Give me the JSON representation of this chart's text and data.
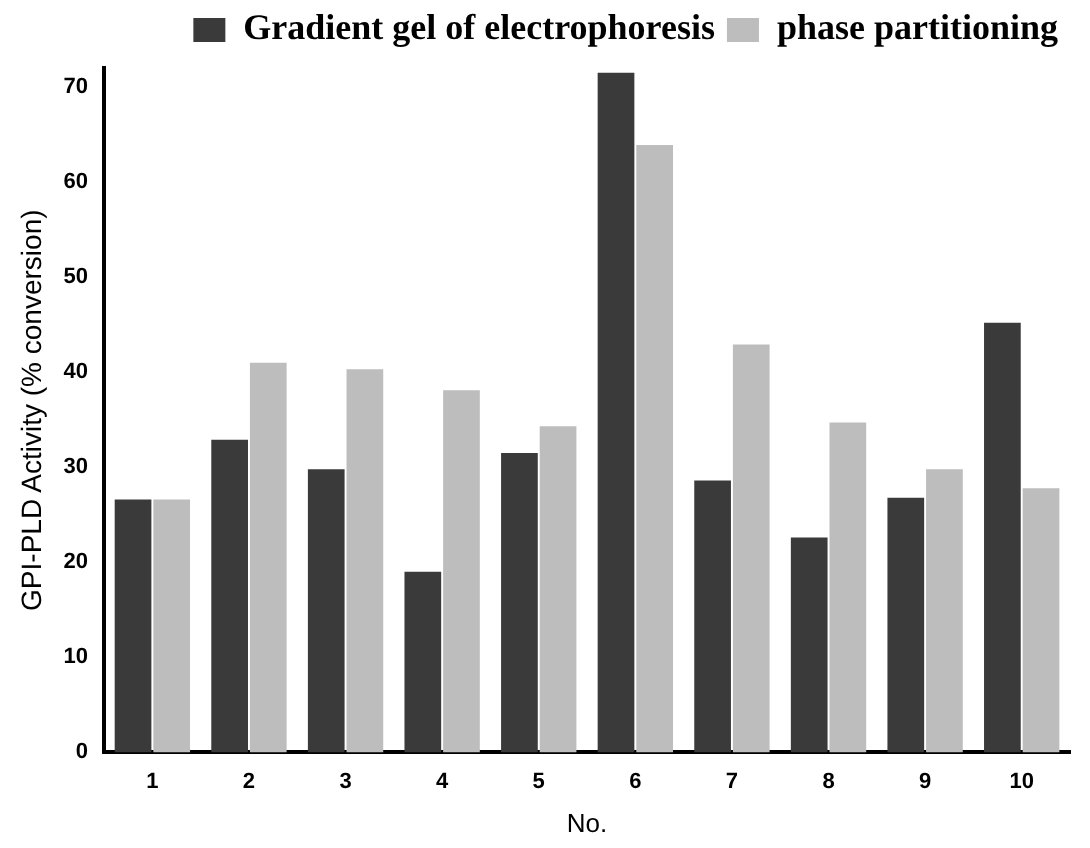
{
  "chart_data": {
    "type": "bar",
    "xlabel": "No.",
    "ylabel": "GPI-PLD Activity (% conversion)",
    "categories": [
      "1",
      "2",
      "3",
      "4",
      "5",
      "6",
      "7",
      "8",
      "9",
      "10"
    ],
    "series": [
      {
        "name": "Gradient gel of electrophoresis",
        "color": "#3a3a3a",
        "values": [
          26.6,
          32.9,
          29.8,
          19,
          31.5,
          71.5,
          28.6,
          22.6,
          26.8,
          45.2
        ]
      },
      {
        "name": "phase partitioning",
        "color": "#bdbdbd",
        "values": [
          26.6,
          41,
          40.3,
          38.1,
          34.3,
          63.9,
          42.9,
          34.7,
          29.8,
          27.8
        ]
      }
    ],
    "ylim": [
      0,
      72
    ],
    "yticks": [
      0,
      10,
      20,
      30,
      40,
      50,
      60,
      70
    ],
    "grid": false,
    "legend": "top right"
  }
}
